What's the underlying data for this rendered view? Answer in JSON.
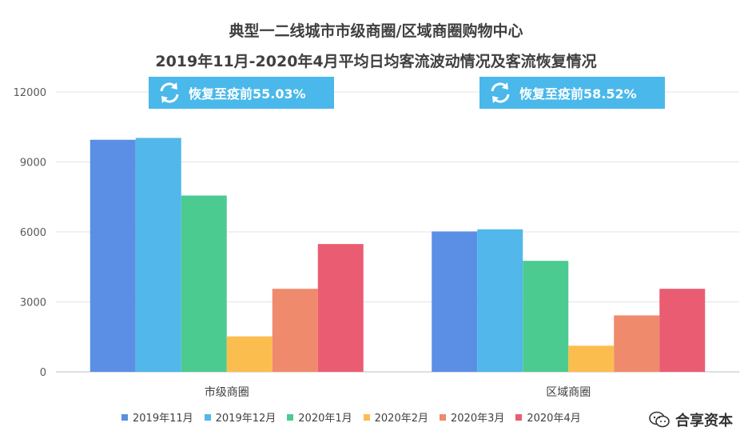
{
  "chart_data": {
    "type": "bar",
    "title": "典型一二线城市市级商圈/区域商圈购物中心",
    "subtitle": "2019年11月-2020年4月平均日均客流波动情况及客流恢复情况",
    "categories": [
      "市级商圈",
      "区域商圈"
    ],
    "series": [
      {
        "name": "2019年11月",
        "color": "#5b8fe5",
        "values": [
          9950,
          6020
        ]
      },
      {
        "name": "2019年12月",
        "color": "#52b7ea",
        "values": [
          10030,
          6110
        ]
      },
      {
        "name": "2020年1月",
        "color": "#4ccb91",
        "values": [
          7560,
          4760
        ]
      },
      {
        "name": "2020年2月",
        "color": "#fcbd4f",
        "values": [
          1520,
          1120
        ]
      },
      {
        "name": "2020年3月",
        "color": "#ef8a6d",
        "values": [
          3560,
          2420
        ]
      },
      {
        "name": "2020年4月",
        "color": "#ea5c72",
        "values": [
          5480,
          3560
        ]
      }
    ],
    "ylim": [
      0,
      12000
    ],
    "yticks": [
      0,
      3000,
      6000,
      9000,
      12000
    ],
    "ytick_labels": [
      "0",
      "3000",
      "6000",
      "9000",
      "12000"
    ],
    "grid": true,
    "legend_position": "bottom",
    "annotations": [
      "恢复至疫前55.03%",
      "恢复至疫前58.52%"
    ]
  },
  "watermark": "合享资本",
  "icons": {
    "badge": "refresh-cycle-icon",
    "watermark": "wechat-icon"
  }
}
